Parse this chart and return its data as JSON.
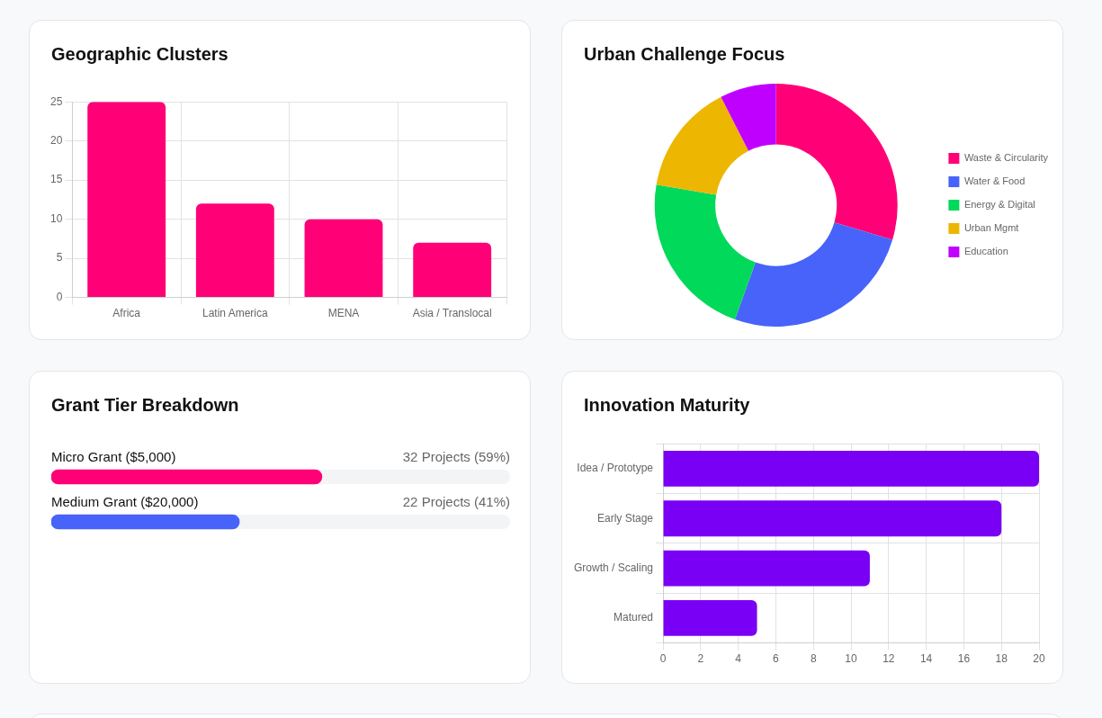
{
  "chart_data": [
    {
      "type": "bar",
      "title": "Geographic Clusters",
      "categories": [
        "Africa",
        "Latin America",
        "MENA",
        "Asia / Translocal"
      ],
      "values": [
        25,
        12,
        10,
        7
      ],
      "color": "#ff0077",
      "ylim": [
        0,
        25
      ],
      "yticks": [
        0,
        5,
        10,
        15,
        20,
        25
      ],
      "grid": true
    },
    {
      "type": "donut",
      "title": "Urban Challenge Focus",
      "categories": [
        "Waste & Circularity",
        "Water & Food",
        "Energy & Digital",
        "Urban Mgmt",
        "Education"
      ],
      "values": [
        29.6,
        25.9,
        22.2,
        14.8,
        7.5
      ],
      "colors": [
        "#ff0077",
        "#4763fa",
        "#00d95a",
        "#edb600",
        "#c000ff"
      ],
      "legend": "right"
    },
    {
      "type": "bar",
      "title": "Grant Tier Breakdown",
      "orientation": "horizontal",
      "categories": [
        "Micro Grant ($5,000)",
        "Medium Grant ($20,000)"
      ],
      "values": [
        59,
        41
      ],
      "value_labels": [
        "32 Projects (59%)",
        "22 Projects (41%)"
      ],
      "colors": [
        "#ff0077",
        "#4763fa"
      ],
      "xlim": [
        0,
        100
      ],
      "tick_labels": false
    },
    {
      "type": "bar",
      "title": "Innovation Maturity",
      "orientation": "horizontal",
      "categories": [
        "Idea / Prototype",
        "Early Stage",
        "Growth / Scaling",
        "Matured"
      ],
      "values": [
        20,
        18,
        11,
        5
      ],
      "color": "#7a00f5",
      "xlim": [
        0,
        20
      ],
      "xticks": [
        0,
        2,
        4,
        6,
        8,
        10,
        12,
        14,
        16,
        18,
        20
      ],
      "grid": true
    }
  ]
}
